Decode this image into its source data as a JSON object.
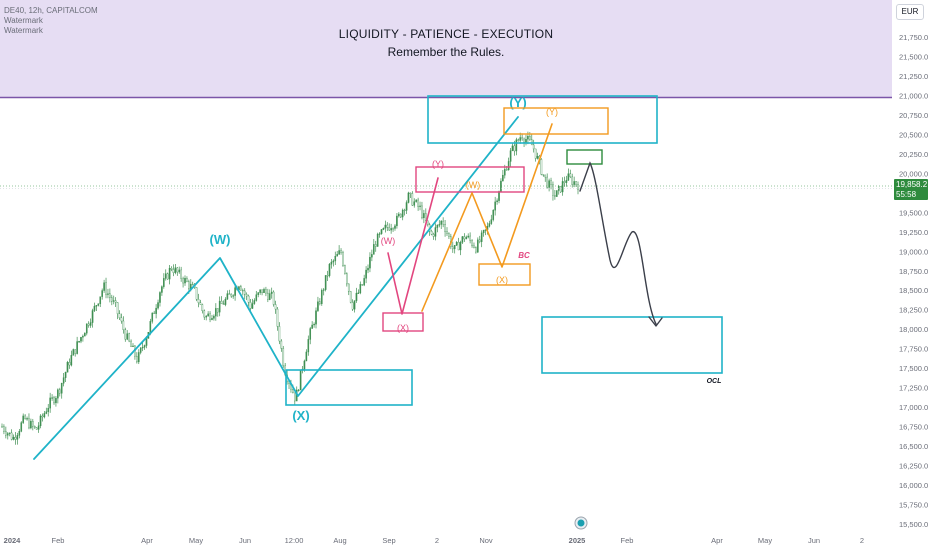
{
  "symbol": {
    "line": "DE40, 12h, CAPITALCOM",
    "watermarks": [
      "Watermark",
      "Watermark"
    ]
  },
  "header": {
    "title": "LIQUIDITY - PATIENCE - EXECUTION",
    "subtitle": "Remember the Rules."
  },
  "currency": "EUR",
  "last_price": {
    "value": "19,858.2",
    "countdown": "55:58"
  },
  "colors": {
    "banner": "#e6ddf3",
    "banner_line": "#7b55a8",
    "cyan": "#1fb3c8",
    "orange": "#f39a1f",
    "pink": "#e2467f",
    "green": "#2e8b3d",
    "arrow": "#3b3f4a",
    "candle": "#3f8f52"
  },
  "chart_data": {
    "type": "line",
    "title": "LIQUIDITY - PATIENCE - EXECUTION",
    "subtitle": "Remember the Rules.",
    "xlabel": "",
    "ylabel": "",
    "ylim": [
      15500,
      22000
    ],
    "y_ticks": [
      "21,750.0",
      "21,500.0",
      "21,250.0",
      "21,000.0",
      "20,750.0",
      "20,500.0",
      "20,250.0",
      "20,000.0",
      "19,750.0",
      "19,500.0",
      "19,250.0",
      "19,000.0",
      "18,750.0",
      "18,500.0",
      "18,250.0",
      "18,000.0",
      "17,750.0",
      "17,500.0",
      "17,250.0",
      "17,000.0",
      "16,750.0",
      "16,500.0",
      "16,250.0",
      "16,000.0",
      "15,750.0",
      "15,500.0"
    ],
    "x_ticks": [
      "2024",
      "Feb",
      "Apr",
      "May",
      "Jun",
      "12:00",
      "Aug",
      "Sep",
      "2",
      "Nov",
      "2025",
      "Feb",
      "Apr",
      "May",
      "Jun",
      "2"
    ],
    "price_path": [
      [
        "2024-01",
        16750
      ],
      [
        "2024-01",
        16600
      ],
      [
        "2024-01",
        16850
      ],
      [
        "2024-02",
        16700
      ],
      [
        "2024-02",
        17000
      ],
      [
        "2024-02",
        17200
      ],
      [
        "2024-03",
        17600
      ],
      [
        "2024-03",
        17900
      ],
      [
        "2024-03",
        18200
      ],
      [
        "2024-04",
        18550
      ],
      [
        "2024-04",
        18300
      ],
      [
        "2024-04",
        17900
      ],
      [
        "2024-04",
        17600
      ],
      [
        "2024-04",
        18000
      ],
      [
        "2024-05",
        18500
      ],
      [
        "2024-05",
        18800
      ],
      [
        "2024-05",
        18650
      ],
      [
        "2024-06",
        18500
      ],
      [
        "2024-06",
        18150
      ],
      [
        "2024-06",
        18250
      ],
      [
        "2024-06",
        18400
      ],
      [
        "2024-07",
        18600
      ],
      [
        "2024-07",
        18300
      ],
      [
        "2024-07",
        18500
      ],
      [
        "2024-08",
        18400
      ],
      [
        "2024-08",
        17500
      ],
      [
        "2024-08",
        17100
      ],
      [
        "2024-08",
        17800
      ],
      [
        "2024-08",
        18300
      ],
      [
        "2024-09",
        18800
      ],
      [
        "2024-09",
        19000
      ],
      [
        "2024-09",
        18300
      ],
      [
        "2024-09",
        18600
      ],
      [
        "2024-09",
        19100
      ],
      [
        "2024-10",
        19300
      ],
      [
        "2024-10",
        19400
      ],
      [
        "2024-10",
        19700
      ],
      [
        "2024-10",
        19550
      ],
      [
        "2024-10",
        19200
      ],
      [
        "2024-11",
        19400
      ],
      [
        "2024-11",
        19000
      ],
      [
        "2024-11",
        19200
      ],
      [
        "2024-11",
        19050
      ],
      [
        "2024-11",
        19300
      ],
      [
        "2024-12",
        19800
      ],
      [
        "2024-12",
        20250
      ],
      [
        "2024-12",
        20500
      ],
      [
        "2024-12",
        20350
      ],
      [
        "2024-12",
        19950
      ],
      [
        "2024-12",
        19700
      ],
      [
        "2025-01",
        19950
      ],
      [
        "2025-01",
        19858
      ]
    ],
    "series": [
      {
        "name": "",
        "values": []
      }
    ],
    "annotations": {
      "cyan_wave": [
        "(W)",
        "(X)",
        "(Y)"
      ],
      "pink_wave": [
        "(W)",
        "(X)",
        "(Y)"
      ],
      "orange_wave": [
        "(W)",
        "(X)",
        "(Y)"
      ],
      "bc_label": "BC",
      "ocl_label": "OCL"
    },
    "grid": false,
    "legend": "none"
  }
}
